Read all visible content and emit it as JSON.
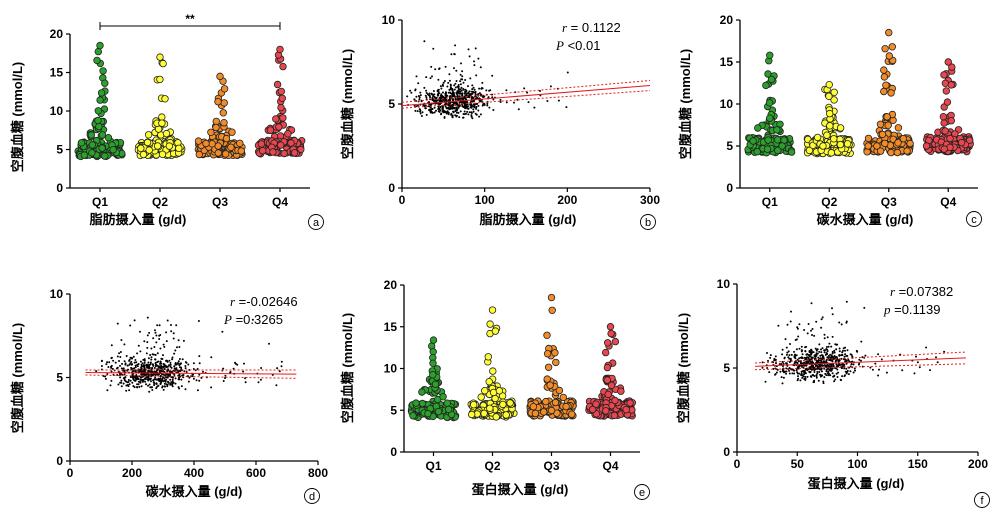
{
  "chart_data": [
    {
      "panel": "a",
      "type": "scatter",
      "subtype": "beeswarm",
      "categories": [
        "Q1",
        "Q2",
        "Q3",
        "Q4"
      ],
      "colors": [
        "#2ca02c",
        "#ffff33",
        "#f28c28",
        "#e8474f"
      ],
      "xlabel": "脂肪摄入量 (g/d)",
      "ylabel": "空腹血糖 (mmol/L)",
      "ylim": [
        0,
        20
      ],
      "yticks": [
        "0",
        "5",
        "10",
        "15",
        "20"
      ],
      "significance": {
        "from": "Q1",
        "to": "Q4",
        "label": "**"
      },
      "summary": [
        {
          "category": "Q1",
          "median": 5.0,
          "max": 18.5
        },
        {
          "category": "Q2",
          "median": 5.1,
          "max": 17.0
        },
        {
          "category": "Q3",
          "median": 5.1,
          "max": 14.5
        },
        {
          "category": "Q4",
          "median": 5.3,
          "max": 18.0
        }
      ],
      "panel_label": "a"
    },
    {
      "panel": "b",
      "type": "scatter",
      "xlabel": "脂肪摄入量 (g/d)",
      "ylabel": "空腹血糖 (mmol/L)",
      "xlim": [
        0,
        300
      ],
      "ylim": [
        0,
        10
      ],
      "xticks": [
        "0",
        "100",
        "200",
        "300"
      ],
      "yticks": [
        "0",
        "5",
        "10"
      ],
      "fit": {
        "x": [
          0,
          300
        ],
        "y": [
          4.9,
          6.1
        ],
        "ci_upper": [
          5.1,
          6.4
        ],
        "ci_lower": [
          4.75,
          5.8
        ]
      },
      "annotation": {
        "r_label": "r",
        "r_value": "= 0.1122",
        "p_label": "P",
        "p_value": "<0.01"
      },
      "panel_label": "b"
    },
    {
      "panel": "c",
      "type": "scatter",
      "subtype": "beeswarm",
      "categories": [
        "Q1",
        "Q2",
        "Q3",
        "Q4"
      ],
      "colors": [
        "#2ca02c",
        "#ffff33",
        "#f28c28",
        "#e8474f"
      ],
      "xlabel": "碳水摄入量 (g/d)",
      "ylabel": "空腹血糖 (mmol/L)",
      "ylim": [
        0,
        20
      ],
      "yticks": [
        "0",
        "5",
        "10",
        "15",
        "20"
      ],
      "summary": [
        {
          "category": "Q1",
          "median": 5.1,
          "max": 15.8
        },
        {
          "category": "Q2",
          "median": 5.0,
          "max": 12.3
        },
        {
          "category": "Q3",
          "median": 5.1,
          "max": 18.5
        },
        {
          "category": "Q4",
          "median": 5.2,
          "max": 15.0
        }
      ],
      "panel_label": "c"
    },
    {
      "panel": "d",
      "type": "scatter",
      "xlabel": "碳水摄入量 (g/d)",
      "ylabel": "空腹血糖 (mmol/L)",
      "xlim": [
        0,
        800
      ],
      "ylim": [
        0,
        10
      ],
      "xticks": [
        "0",
        "200",
        "400",
        "600",
        "800"
      ],
      "yticks": [
        "0",
        "5",
        "10"
      ],
      "fit": {
        "x": [
          50,
          730
        ],
        "y": [
          5.3,
          5.2
        ],
        "ci_upper": [
          5.45,
          5.45
        ],
        "ci_lower": [
          5.15,
          4.95
        ]
      },
      "annotation": {
        "r_label": "r",
        "r_value": "=-0.02646",
        "p_label": "P",
        "p_value": "=0.3265"
      },
      "panel_label": "d"
    },
    {
      "panel": "e",
      "type": "scatter",
      "subtype": "beeswarm",
      "categories": [
        "Q1",
        "Q2",
        "Q3",
        "Q4"
      ],
      "colors": [
        "#2ca02c",
        "#ffff33",
        "#f28c28",
        "#e8474f"
      ],
      "xlabel": "蛋白摄入量 (g/d)",
      "ylabel": "空腹血糖 (mmol/L)",
      "ylim": [
        0,
        20
      ],
      "yticks": [
        "0",
        "5",
        "10",
        "15",
        "20"
      ],
      "summary": [
        {
          "category": "Q1",
          "median": 5.0,
          "max": 13.4
        },
        {
          "category": "Q2",
          "median": 5.1,
          "max": 17.0
        },
        {
          "category": "Q3",
          "median": 5.2,
          "max": 18.5
        },
        {
          "category": "Q4",
          "median": 5.2,
          "max": 15.0
        }
      ],
      "panel_label": "e"
    },
    {
      "panel": "f",
      "type": "scatter",
      "xlabel": "蛋白摄入量 (g/d)",
      "ylabel": "空腹血糖 (mmol/L)",
      "xlim": [
        0,
        200
      ],
      "ylim": [
        0,
        10
      ],
      "xticks": [
        "0",
        "50",
        "100",
        "150",
        "200"
      ],
      "yticks": [
        "0",
        "5",
        "10"
      ],
      "fit": {
        "x": [
          15,
          190
        ],
        "y": [
          5.1,
          5.6
        ],
        "ci_upper": [
          5.3,
          5.95
        ],
        "ci_lower": [
          4.9,
          5.25
        ]
      },
      "annotation": {
        "r_label": "r",
        "r_value": "=0.07382",
        "p_label": "p",
        "p_value": "=0.1139"
      },
      "panel_label": "f"
    }
  ]
}
